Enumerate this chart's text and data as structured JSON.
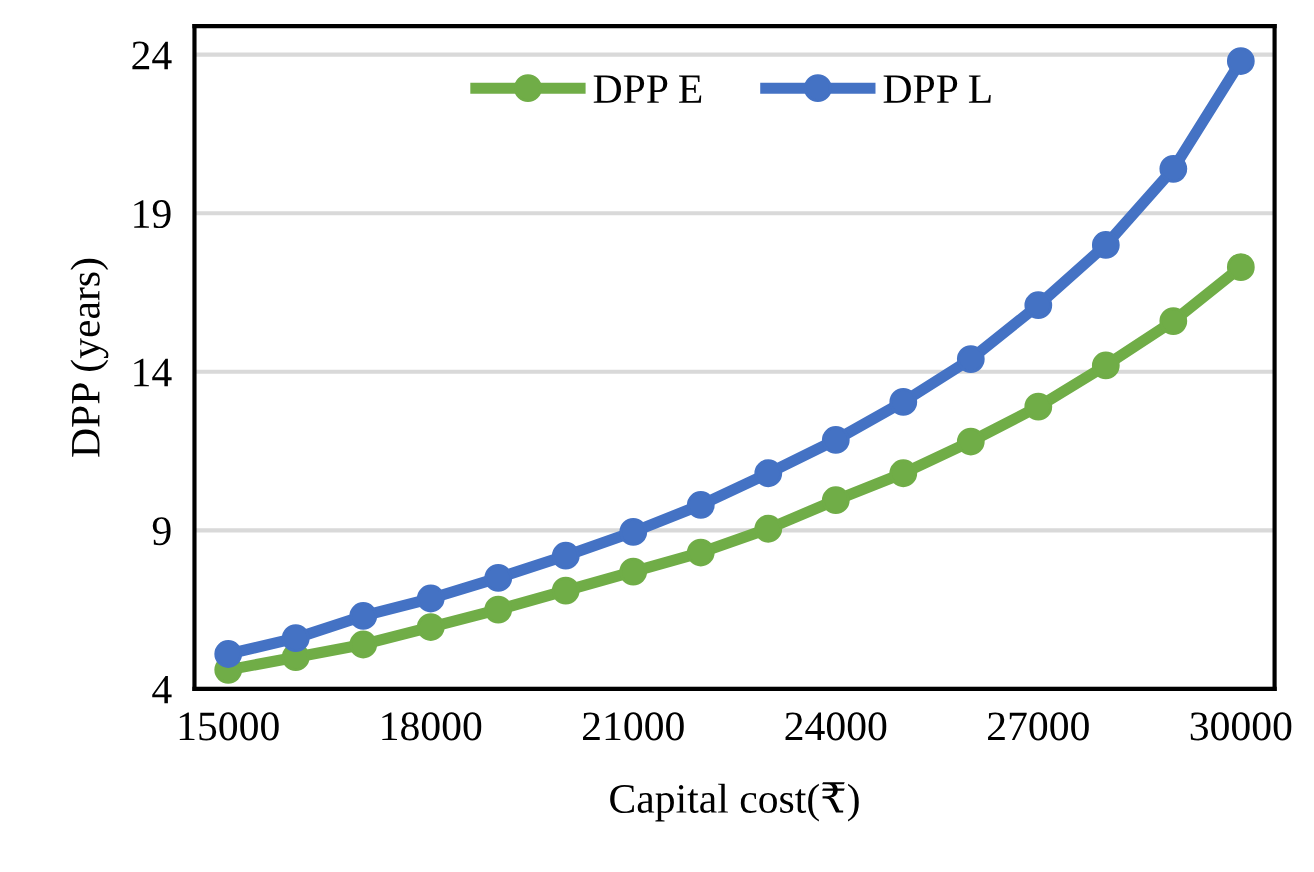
{
  "chart_data": {
    "type": "line",
    "xlabel": "Capital cost(₹)",
    "ylabel": "DPP (years)",
    "x": [
      15000,
      16000,
      17000,
      18000,
      19000,
      20000,
      21000,
      22000,
      23000,
      24000,
      25000,
      26000,
      27000,
      28000,
      29000,
      30000
    ],
    "series": [
      {
        "name": "DPP E",
        "color": "#70ad47",
        "values": [
          4.6,
          5.0,
          5.4,
          5.95,
          6.5,
          7.1,
          7.7,
          8.3,
          9.05,
          9.95,
          10.8,
          11.8,
          12.9,
          14.2,
          15.6,
          17.3
        ]
      },
      {
        "name": "DPP L",
        "color": "#4472c4",
        "values": [
          5.1,
          5.6,
          6.3,
          6.85,
          7.5,
          8.2,
          8.95,
          9.8,
          10.8,
          11.85,
          13.05,
          14.4,
          16.1,
          18.0,
          20.4,
          23.8
        ]
      }
    ],
    "xlim": [
      14500,
      30500
    ],
    "xticks": [
      15000,
      18000,
      21000,
      24000,
      27000,
      30000
    ],
    "ylim": [
      4,
      24.9
    ],
    "yticks": [
      4,
      9,
      14,
      19,
      24
    ],
    "grid": "y",
    "legend": "top",
    "marker": "circle",
    "line_style": "solid"
  }
}
